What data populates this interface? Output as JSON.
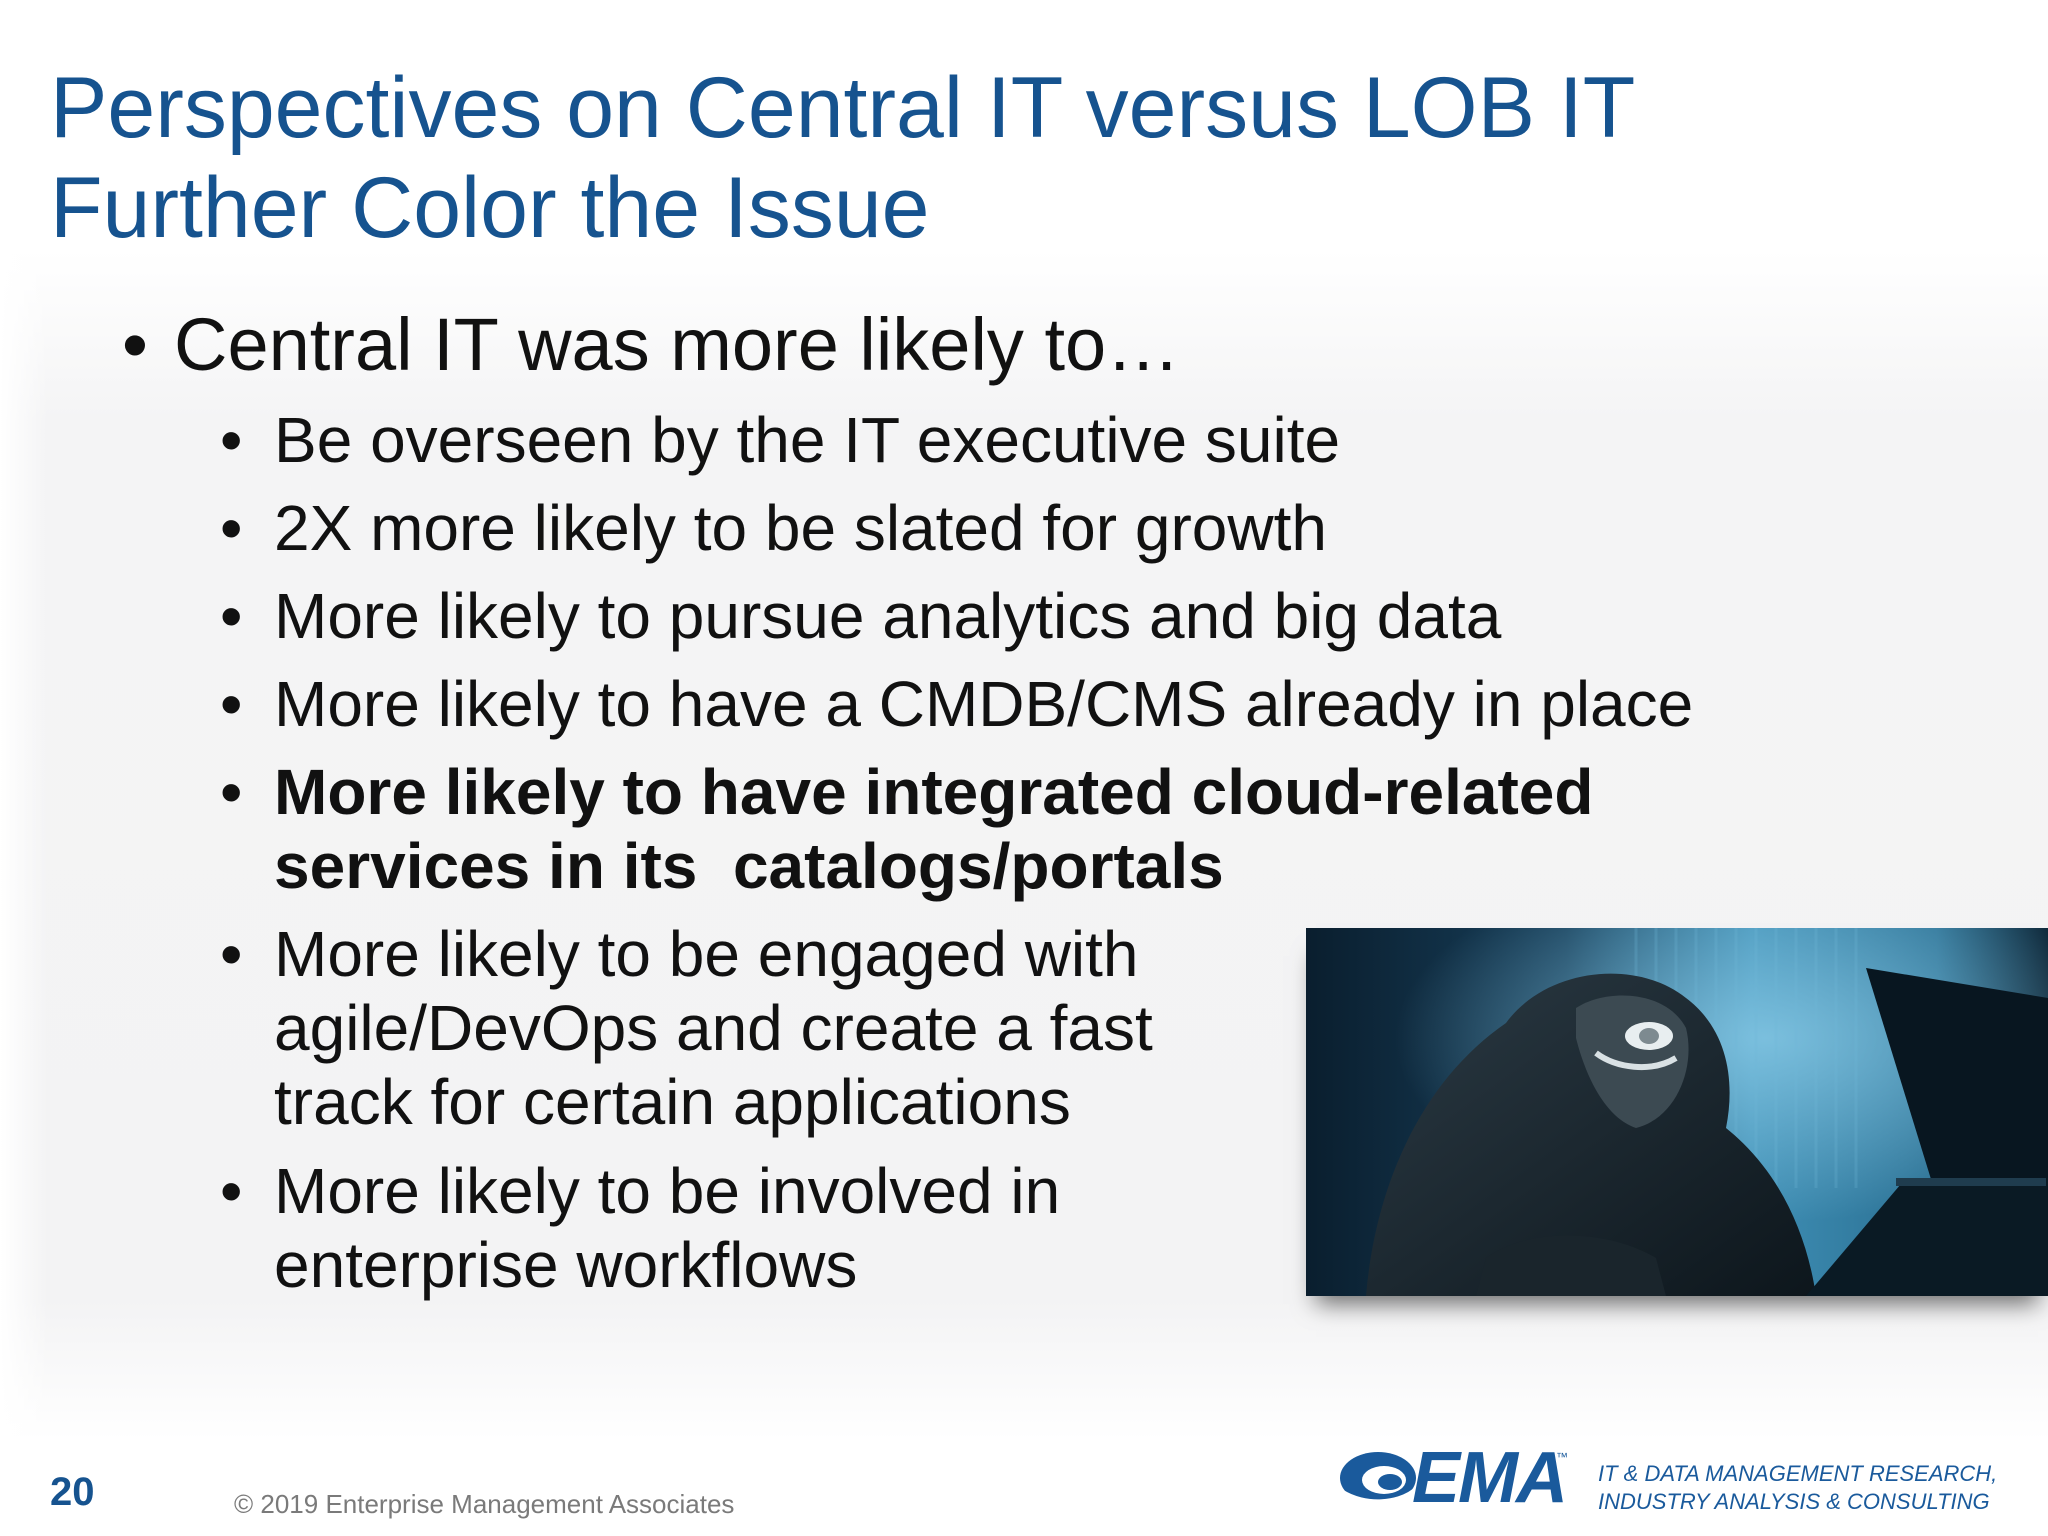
{
  "title": {
    "line1": "Perspectives on Central IT versus LOB IT",
    "line2": "Further Color the Issue"
  },
  "bullets": {
    "main": {
      "marker": "•",
      "text": "Central IT was more likely to…"
    },
    "sub": [
      {
        "marker": "•",
        "lines": [
          "Be overseen by the IT executive suite"
        ]
      },
      {
        "marker": "•",
        "lines": [
          "2X more likely to be slated for growth"
        ]
      },
      {
        "marker": "•",
        "lines": [
          "More likely to pursue analytics and big data"
        ]
      },
      {
        "marker": "•",
        "lines": [
          "More likely to have a CMDB/CMS already in place"
        ]
      },
      {
        "marker": "•",
        "bold": true,
        "lines": [
          "More likely to have integrated cloud-related",
          "services in its  catalogs/portals"
        ]
      },
      {
        "marker": "•",
        "lines": [
          "More likely to be engaged with",
          "agile/DevOps and create a fast",
          "track for certain applications"
        ]
      },
      {
        "marker": "•",
        "lines": [
          "More likely to be involved in",
          "enterprise workflows"
        ]
      }
    ]
  },
  "photo": {
    "icon": "hooded-hacker-at-computer"
  },
  "footer": {
    "page_number": "20",
    "copyright": "© 2019 Enterprise Management Associates",
    "logo_text": "EMA",
    "logo_trademark": "™",
    "tagline_line1": "IT & DATA MANAGEMENT RESEARCH,",
    "tagline_line2": "INDUSTRY ANALYSIS & CONSULTING"
  },
  "colors": {
    "title": "#16538f",
    "body_text": "#111111",
    "brand_blue": "#1a5a9c",
    "footer_gray": "#7a7a7a"
  }
}
